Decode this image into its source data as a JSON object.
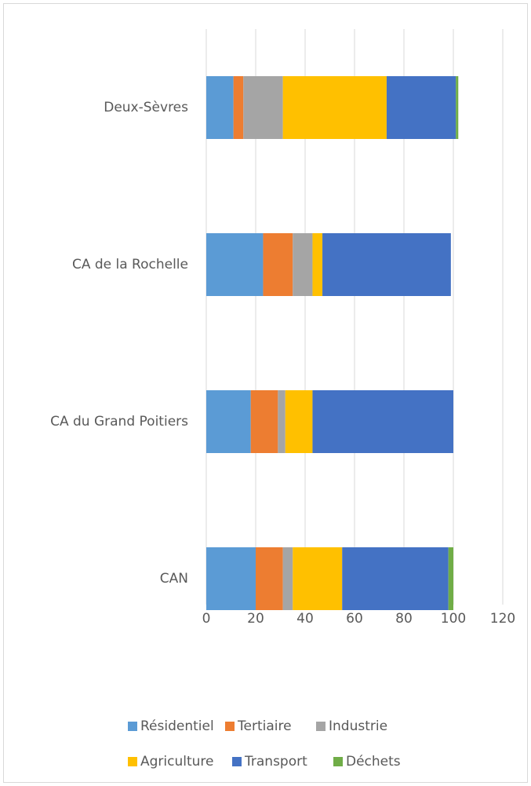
{
  "chart_data": {
    "type": "stacked_barh",
    "categories": [
      "Deux-Sèvres",
      "CA de la Rochelle",
      "CA du Grand Poitiers",
      "CAN"
    ],
    "series": [
      {
        "name": "Résidentiel",
        "color": "#5b9bd5",
        "values": [
          11,
          23,
          18,
          20
        ]
      },
      {
        "name": "Tertiaire",
        "color": "#ed7d31",
        "values": [
          4,
          12,
          11,
          11
        ]
      },
      {
        "name": "Industrie",
        "color": "#a5a5a5",
        "values": [
          16,
          8,
          3,
          4
        ]
      },
      {
        "name": "Agriculture",
        "color": "#ffc000",
        "values": [
          42,
          4,
          11,
          20
        ]
      },
      {
        "name": "Transport",
        "color": "#4472c4",
        "values": [
          28,
          52,
          57,
          43
        ]
      },
      {
        "name": "Déchets",
        "color": "#70ad47",
        "values": [
          1,
          0,
          0,
          2
        ]
      }
    ],
    "xlim": [
      0,
      120
    ],
    "xticks": [
      0,
      20,
      40,
      60,
      80,
      100,
      120
    ],
    "grid": true,
    "legend": "bottom"
  }
}
